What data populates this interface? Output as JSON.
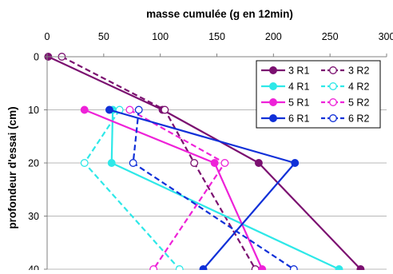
{
  "chart_data": {
    "type": "line",
    "title": "",
    "xlabel": "masse cumulée (g en 12min)",
    "ylabel": "profondeur d'essai (cm)",
    "xlim": [
      0,
      300
    ],
    "ylim": [
      0,
      40
    ],
    "y_reversed": true,
    "x_axis_position": "top",
    "x_ticks": [
      "0",
      "50",
      "100",
      "150",
      "200",
      "250",
      "300"
    ],
    "y_ticks": [
      "0",
      "10",
      "20",
      "30",
      "40"
    ],
    "grid": "horizontal",
    "legend_position": "top-right",
    "depths": [
      0,
      10,
      20,
      30,
      40
    ],
    "series": [
      {
        "name": "3 R1",
        "color": "#7b1070",
        "dashed": false,
        "filled": true,
        "points": [
          [
            1,
            0
          ],
          [
            102,
            10
          ],
          [
            187,
            20
          ],
          [
            277,
            40
          ]
        ]
      },
      {
        "name": "3 R2",
        "color": "#7b1070",
        "dashed": true,
        "filled": false,
        "points": [
          [
            13,
            0
          ],
          [
            104,
            10
          ],
          [
            130,
            20
          ],
          [
            184,
            40
          ]
        ]
      },
      {
        "name": "4 R1",
        "color": "#2ee8e8",
        "dashed": false,
        "filled": true,
        "points": [
          [
            58,
            10
          ],
          [
            57,
            20
          ],
          [
            258,
            40
          ]
        ]
      },
      {
        "name": "4 R2",
        "color": "#2ee8e8",
        "dashed": true,
        "filled": false,
        "points": [
          [
            64,
            10
          ],
          [
            33,
            20
          ],
          [
            117,
            40
          ]
        ]
      },
      {
        "name": "5 R1",
        "color": "#ee22d8",
        "dashed": false,
        "filled": true,
        "points": [
          [
            33,
            10
          ],
          [
            148,
            20
          ],
          [
            190,
            40
          ]
        ]
      },
      {
        "name": "5 R2",
        "color": "#ee22d8",
        "dashed": true,
        "filled": false,
        "points": [
          [
            73,
            10
          ],
          [
            157,
            20
          ],
          [
            94,
            40
          ]
        ]
      },
      {
        "name": "6 R1",
        "color": "#1030d8",
        "dashed": false,
        "filled": true,
        "points": [
          [
            55,
            10
          ],
          [
            219,
            20
          ],
          [
            138,
            40
          ]
        ]
      },
      {
        "name": "6 R2",
        "color": "#1030d8",
        "dashed": true,
        "filled": false,
        "points": [
          [
            81,
            10
          ],
          [
            76,
            20
          ],
          [
            218,
            40
          ]
        ]
      }
    ]
  }
}
